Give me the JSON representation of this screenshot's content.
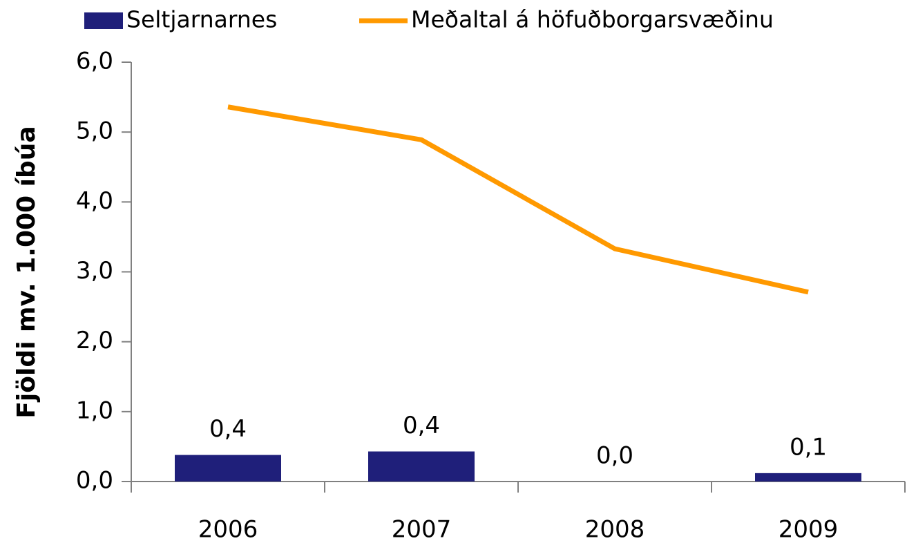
{
  "chart_data": {
    "type": "bar",
    "y_label": "Fjöldi mv. 1.000 íbúa",
    "categories": [
      "2006",
      "2007",
      "2008",
      "2009"
    ],
    "series": [
      {
        "name": "Seltjarnarnes",
        "type": "bar",
        "color": "#1f1f7a",
        "values": [
          0.38,
          0.43,
          0.0,
          0.12
        ],
        "value_labels": [
          "0,4",
          "0,4",
          "0,0",
          "0,1"
        ]
      },
      {
        "name": "Meðaltal á höfuðborgarsvæðinu",
        "type": "line",
        "color": "#ff9900",
        "values": [
          5.36,
          4.89,
          3.33,
          2.71
        ]
      }
    ],
    "ylim": [
      0,
      6
    ],
    "yticks": [
      {
        "value": 0,
        "label": "0,0"
      },
      {
        "value": 1,
        "label": "1,0"
      },
      {
        "value": 2,
        "label": "2,0"
      },
      {
        "value": 3,
        "label": "3,0"
      },
      {
        "value": 4,
        "label": "4,0"
      },
      {
        "value": 5,
        "label": "5,0"
      },
      {
        "value": 6,
        "label": "6,0"
      }
    ],
    "legend": "top"
  }
}
